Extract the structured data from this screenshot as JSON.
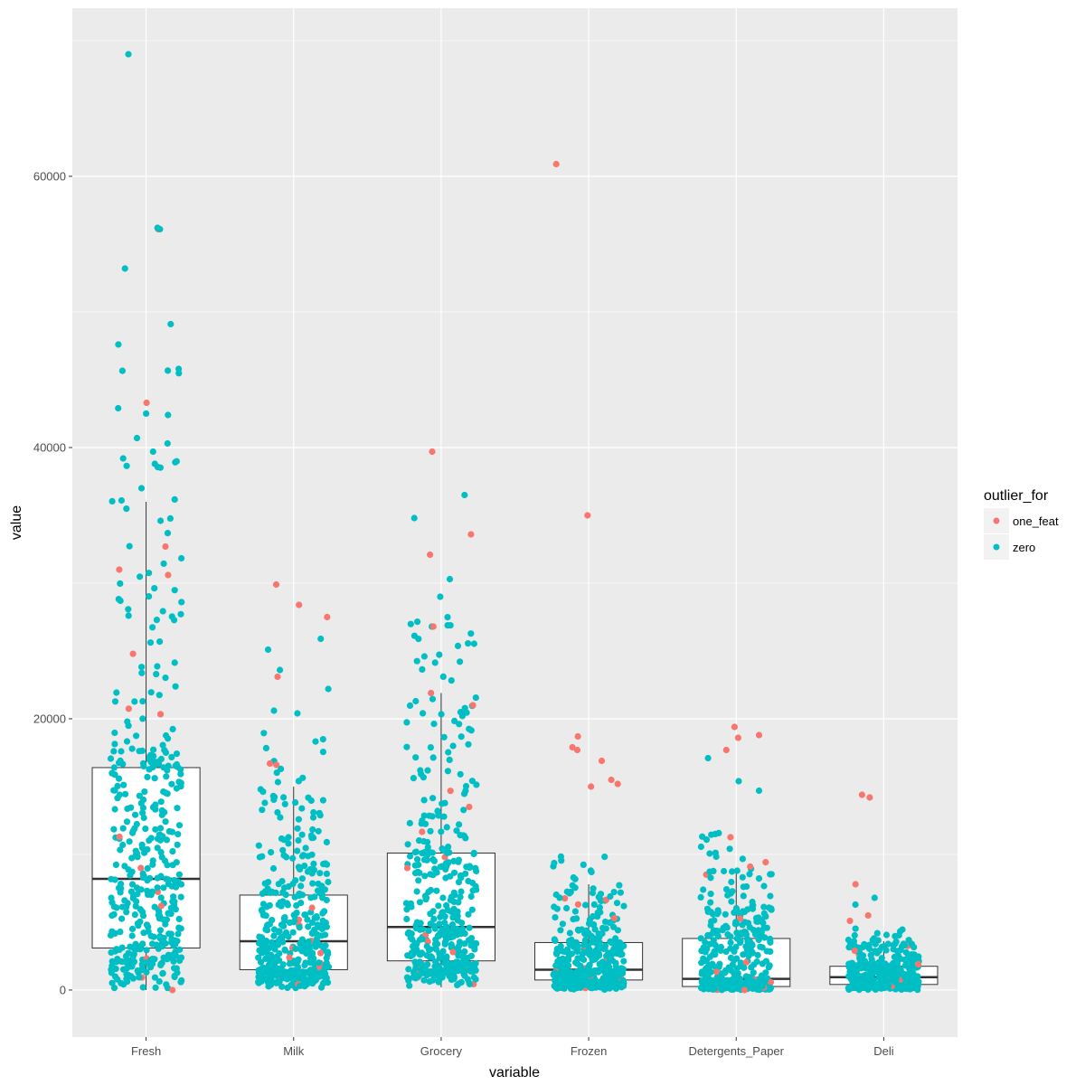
{
  "chart_data": {
    "type": "boxplot-jitter",
    "title": "",
    "xlabel": "variable",
    "ylabel": "value",
    "ylim": [
      -3470,
      72400
    ],
    "y_ticks": [
      0,
      20000,
      40000,
      60000
    ],
    "y_tick_labels": [
      "0",
      "20000",
      "40000",
      "60000"
    ],
    "grid": true,
    "categories": [
      "Fresh",
      "Milk",
      "Grocery",
      "Frozen",
      "Detergents_Paper",
      "Deli"
    ],
    "boxes": [
      {
        "category": "Fresh",
        "lower_whisker": 3,
        "q1": 3100,
        "median": 8200,
        "q3": 16400,
        "upper_whisker": 36000
      },
      {
        "category": "Milk",
        "lower_whisker": 55,
        "q1": 1500,
        "median": 3600,
        "q3": 7000,
        "upper_whisker": 15000
      },
      {
        "category": "Grocery",
        "lower_whisker": 200,
        "q1": 2150,
        "median": 4650,
        "q3": 10100,
        "upper_whisker": 21900
      },
      {
        "category": "Frozen",
        "lower_whisker": 25,
        "q1": 740,
        "median": 1500,
        "q3": 3500,
        "upper_whisker": 7800
      },
      {
        "category": "Detergents_Paper",
        "lower_whisker": 3,
        "q1": 260,
        "median": 820,
        "q3": 3800,
        "upper_whisker": 9000
      },
      {
        "category": "Deli",
        "lower_whisker": 3,
        "q1": 410,
        "median": 950,
        "q3": 1750,
        "upper_whisker": 3600
      }
    ],
    "legend": {
      "title": "outlier_for",
      "position": "right",
      "entries": [
        {
          "label": "one_feat",
          "color": "#F8766D"
        },
        {
          "label": "zero",
          "color": "#00BFC4"
        }
      ]
    },
    "points_per_category": 440,
    "notable_points": [
      {
        "category": "Fresh",
        "value": 69000,
        "group": "zero"
      },
      {
        "category": "Fresh",
        "value": 56100,
        "group": "one_feat"
      },
      {
        "category": "Fresh",
        "value": 56100,
        "group": "zero"
      },
      {
        "category": "Fresh",
        "value": 56200,
        "group": "zero"
      },
      {
        "category": "Fresh",
        "value": 53200,
        "group": "zero"
      },
      {
        "category": "Fresh",
        "value": 49100,
        "group": "zero"
      },
      {
        "category": "Fresh",
        "value": 47600,
        "group": "zero"
      },
      {
        "category": "Fresh",
        "value": 45800,
        "group": "zero"
      },
      {
        "category": "Fresh",
        "value": 43300,
        "group": "one_feat"
      },
      {
        "category": "Fresh",
        "value": 42900,
        "group": "zero"
      },
      {
        "category": "Fresh",
        "value": 42400,
        "group": "zero"
      },
      {
        "category": "Fresh",
        "value": 40700,
        "group": "zero"
      },
      {
        "category": "Fresh",
        "value": 40300,
        "group": "zero"
      },
      {
        "category": "Fresh",
        "value": 39700,
        "group": "zero"
      },
      {
        "category": "Fresh",
        "value": 39200,
        "group": "zero"
      },
      {
        "category": "Fresh",
        "value": 38800,
        "group": "zero"
      },
      {
        "category": "Fresh",
        "value": 37000,
        "group": "zero"
      },
      {
        "category": "Fresh",
        "value": 36100,
        "group": "zero"
      },
      {
        "category": "Fresh",
        "value": 32700,
        "group": "one_feat"
      },
      {
        "category": "Fresh",
        "value": 31000,
        "group": "one_feat"
      },
      {
        "category": "Fresh",
        "value": 30600,
        "group": "one_feat"
      },
      {
        "category": "Fresh",
        "value": 11300,
        "group": "one_feat"
      },
      {
        "category": "Fresh",
        "value": 9000,
        "group": "one_feat"
      },
      {
        "category": "Fresh",
        "value": 6200,
        "group": "one_feat"
      },
      {
        "category": "Fresh",
        "value": 0,
        "group": "one_feat"
      },
      {
        "category": "Milk",
        "value": 29900,
        "group": "one_feat"
      },
      {
        "category": "Milk",
        "value": 28400,
        "group": "one_feat"
      },
      {
        "category": "Milk",
        "value": 27500,
        "group": "one_feat"
      },
      {
        "category": "Milk",
        "value": 25900,
        "group": "zero"
      },
      {
        "category": "Milk",
        "value": 25100,
        "group": "zero"
      },
      {
        "category": "Milk",
        "value": 23600,
        "group": "zero"
      },
      {
        "category": "Milk",
        "value": 23100,
        "group": "one_feat"
      },
      {
        "category": "Milk",
        "value": 22200,
        "group": "zero"
      },
      {
        "category": "Milk",
        "value": 20600,
        "group": "zero"
      },
      {
        "category": "Milk",
        "value": 20400,
        "group": "zero"
      },
      {
        "category": "Milk",
        "value": 16700,
        "group": "one_feat"
      },
      {
        "category": "Milk",
        "value": 16600,
        "group": "one_feat"
      },
      {
        "category": "Milk",
        "value": 2400,
        "group": "one_feat"
      },
      {
        "category": "Grocery",
        "value": 39700,
        "group": "one_feat"
      },
      {
        "category": "Grocery",
        "value": 36500,
        "group": "zero"
      },
      {
        "category": "Grocery",
        "value": 34800,
        "group": "zero"
      },
      {
        "category": "Grocery",
        "value": 33600,
        "group": "one_feat"
      },
      {
        "category": "Grocery",
        "value": 32100,
        "group": "one_feat"
      },
      {
        "category": "Grocery",
        "value": 30300,
        "group": "zero"
      },
      {
        "category": "Grocery",
        "value": 29000,
        "group": "zero"
      },
      {
        "category": "Grocery",
        "value": 26800,
        "group": "zero"
      },
      {
        "category": "Grocery",
        "value": 26800,
        "group": "one_feat"
      },
      {
        "category": "Grocery",
        "value": 21000,
        "group": "one_feat"
      },
      {
        "category": "Grocery",
        "value": 13500,
        "group": "one_feat"
      },
      {
        "category": "Grocery",
        "value": 9000,
        "group": "one_feat"
      },
      {
        "category": "Grocery",
        "value": 2800,
        "group": "one_feat"
      },
      {
        "category": "Frozen",
        "value": 60900,
        "group": "one_feat"
      },
      {
        "category": "Frozen",
        "value": 35000,
        "group": "one_feat"
      },
      {
        "category": "Frozen",
        "value": 18700,
        "group": "one_feat"
      },
      {
        "category": "Frozen",
        "value": 17900,
        "group": "one_feat"
      },
      {
        "category": "Frozen",
        "value": 17700,
        "group": "one_feat"
      },
      {
        "category": "Frozen",
        "value": 16900,
        "group": "one_feat"
      },
      {
        "category": "Frozen",
        "value": 15500,
        "group": "one_feat"
      },
      {
        "category": "Frozen",
        "value": 15200,
        "group": "one_feat"
      },
      {
        "category": "Frozen",
        "value": 15000,
        "group": "one_feat"
      },
      {
        "category": "Frozen",
        "value": 5300,
        "group": "one_feat"
      },
      {
        "category": "Detergents_Paper",
        "value": 19400,
        "group": "one_feat"
      },
      {
        "category": "Detergents_Paper",
        "value": 18800,
        "group": "one_feat"
      },
      {
        "category": "Detergents_Paper",
        "value": 18600,
        "group": "one_feat"
      },
      {
        "category": "Detergents_Paper",
        "value": 17700,
        "group": "one_feat"
      },
      {
        "category": "Detergents_Paper",
        "value": 17100,
        "group": "zero"
      },
      {
        "category": "Detergents_Paper",
        "value": 15400,
        "group": "zero"
      },
      {
        "category": "Detergents_Paper",
        "value": 14700,
        "group": "zero"
      },
      {
        "category": "Detergents_Paper",
        "value": 0,
        "group": "one_feat"
      },
      {
        "category": "Deli",
        "value": 14400,
        "group": "one_feat"
      },
      {
        "category": "Deli",
        "value": 14200,
        "group": "one_feat"
      },
      {
        "category": "Deli",
        "value": 7800,
        "group": "one_feat"
      },
      {
        "category": "Deli",
        "value": 6800,
        "group": "zero"
      },
      {
        "category": "Deli",
        "value": 6300,
        "group": "zero"
      },
      {
        "category": "Deli",
        "value": 5500,
        "group": "one_feat"
      },
      {
        "category": "Deli",
        "value": 5100,
        "group": "one_feat"
      },
      {
        "category": "Deli",
        "value": 2900,
        "group": "one_feat"
      },
      {
        "category": "Deli",
        "value": 1900,
        "group": "one_feat"
      }
    ]
  },
  "colors": {
    "panel_background": "#EBEBEB",
    "grid": "#FFFFFF",
    "box_fill": "#FFFFFF",
    "box_line": "#333333",
    "tick_text": "#4D4D4D",
    "one_feat": "#F8766D",
    "zero": "#00BFC4"
  }
}
